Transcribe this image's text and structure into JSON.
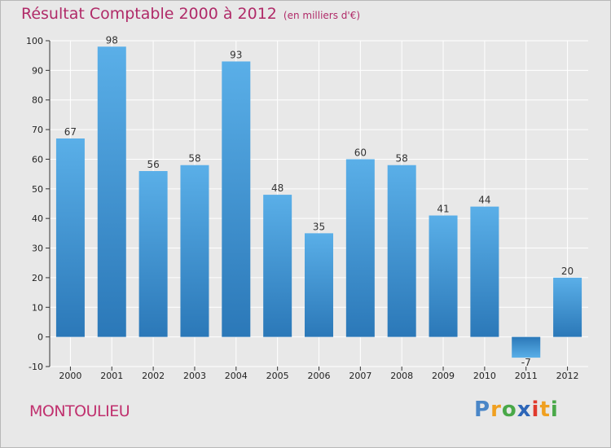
{
  "chart_data": {
    "type": "bar",
    "title": "Résultat Comptable 2000 à 2012",
    "subtitle": "(en milliers d'€)",
    "categories": [
      "2000",
      "2001",
      "2002",
      "2003",
      "2004",
      "2005",
      "2006",
      "2007",
      "2008",
      "2009",
      "2010",
      "2011",
      "2012"
    ],
    "values": [
      67,
      98,
      56,
      58,
      93,
      48,
      35,
      60,
      58,
      41,
      44,
      -7,
      20
    ],
    "ylim": [
      -10,
      100
    ],
    "yticks": [
      -10,
      0,
      10,
      20,
      30,
      40,
      50,
      60,
      70,
      80,
      90,
      100
    ],
    "grid": true,
    "xlabel": "",
    "ylabel": ""
  },
  "footer": {
    "commune": "MONTOULIEU",
    "brand": "Proxiti"
  },
  "colors": {
    "bar_top": "#5aafe8",
    "bar_bottom": "#2b78b8",
    "title": "#b02a68",
    "background": "#e8e8e8"
  }
}
